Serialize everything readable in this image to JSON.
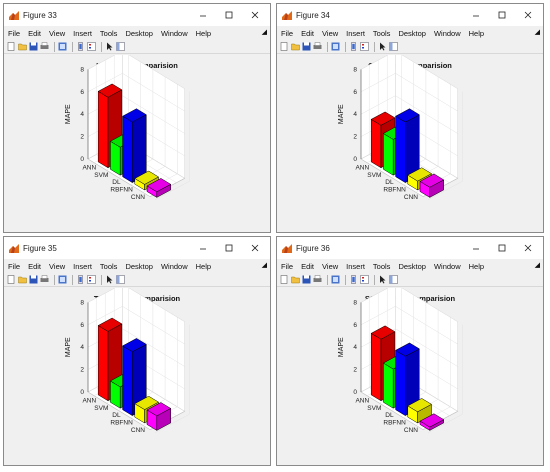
{
  "menu_items": [
    "File",
    "Edit",
    "View",
    "Insert",
    "Tools",
    "Desktop",
    "Window",
    "Help"
  ],
  "y_ticks": [
    "0",
    "2",
    "4",
    "6",
    "8"
  ],
  "ylabel": "MAPE",
  "windows": [
    {
      "title": "Figure 33",
      "chart_title": "K - MAPE Comparision"
    },
    {
      "title": "Figure 34",
      "chart_title": "Cl - MAPE Comparision"
    },
    {
      "title": "Figure 35",
      "chart_title": "TH - MAPE Comparision"
    },
    {
      "title": "Figure 36",
      "chart_title": "SO4 - MAPE Comparision",
      "chart_title_sub": "4",
      "chart_title_base": "SO",
      "chart_title_rest": " - MAPE Comparision"
    }
  ],
  "chart_data": [
    {
      "type": "bar",
      "title": "K - MAPE Comparision",
      "ylabel": "MAPE",
      "ylim": [
        0,
        8
      ],
      "categories": [
        "ANN",
        "SVM",
        "DL",
        "RBFNN",
        "CNN"
      ],
      "values": [
        6.3,
        2.5,
        5.4,
        0.5,
        0.5
      ]
    },
    {
      "type": "bar",
      "title": "Cl - MAPE Comparision",
      "ylabel": "MAPE",
      "ylim": [
        0,
        8
      ],
      "categories": [
        "ANN",
        "SVM",
        "DL",
        "RBFNN",
        "CNN"
      ],
      "values": [
        3.8,
        3.2,
        5.4,
        0.8,
        0.9
      ]
    },
    {
      "type": "bar",
      "title": "TH - MAPE Comparision",
      "ylabel": "MAPE",
      "ylim": [
        0,
        8
      ],
      "categories": [
        "ANN",
        "SVM",
        "DL",
        "RBFNN",
        "CNN"
      ],
      "values": [
        6.2,
        1.9,
        5.7,
        1.2,
        1.3
      ]
    },
    {
      "type": "bar",
      "title": "SO4 - MAPE Comparision",
      "ylabel": "MAPE",
      "ylim": [
        0,
        8
      ],
      "categories": [
        "ANN",
        "SVM",
        "DL",
        "RBFNN",
        "CNN"
      ],
      "values": [
        5.5,
        3.5,
        5.3,
        1.0,
        0.3
      ]
    }
  ],
  "colors": {
    "ANN": "#ff0000",
    "SVM": "#00ff00",
    "DL": "#0000ff",
    "RBFNN": "#ffff00",
    "CNN": "#ff00ff",
    "titlebar": "#ffffff",
    "window_bg": "#f0f0f0"
  }
}
